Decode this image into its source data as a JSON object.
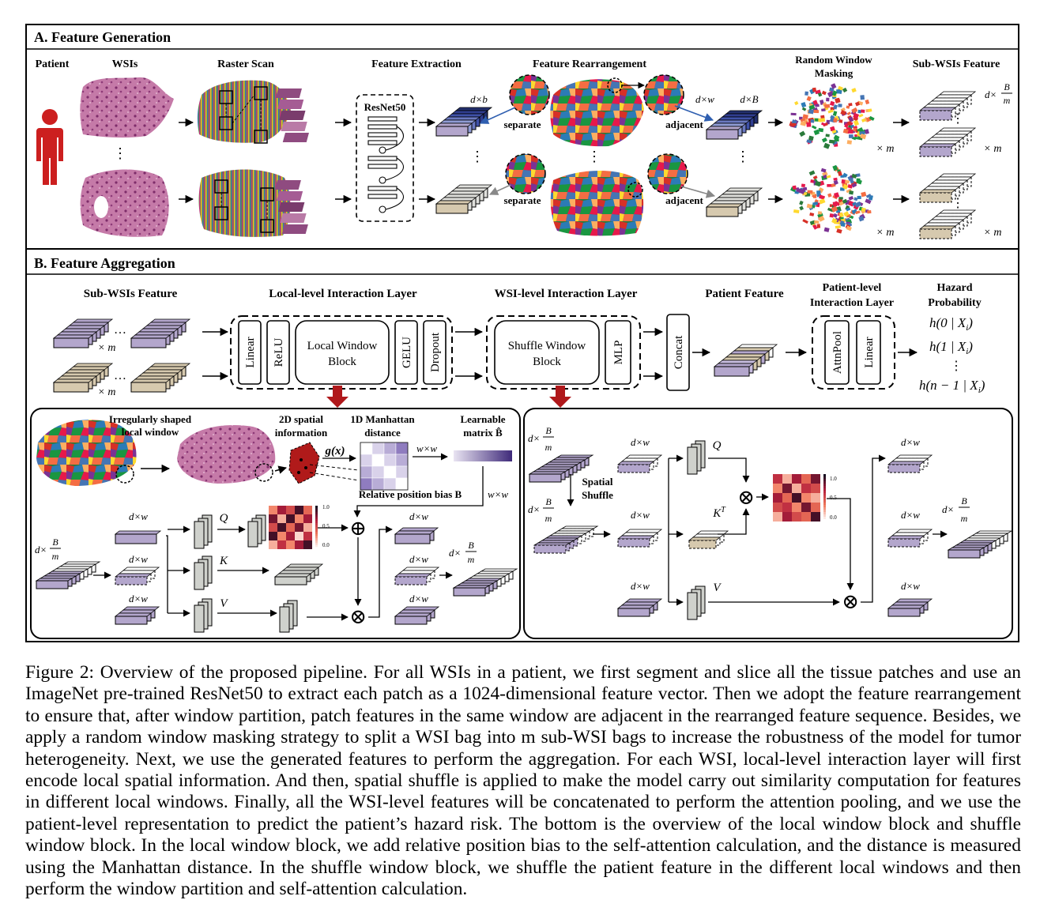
{
  "section_a": {
    "title": "A. Feature Generation",
    "col_patient": "Patient",
    "col_wsis": "WSIs",
    "col_raster": "Raster Scan",
    "col_extraction": "Feature Extraction",
    "col_rearrange": "Feature Rearrangement",
    "col_masking_1": "Random Window",
    "col_masking_2": "Masking",
    "col_subwsi": "Sub-WSIs Feature",
    "resnet": "ResNet50",
    "dim_db": "d×b",
    "dim_dw": "d×w",
    "dim_dB": "d×B",
    "dim_dBm_prefix": "d×",
    "frac_num": "B",
    "frac_den": "m",
    "separate": "separate",
    "adjacent": "adjacent",
    "times_m": "× m",
    "dots": "⋮"
  },
  "section_b": {
    "title": "B. Feature Aggregation",
    "col_subwsi": "Sub-WSIs Feature",
    "col_local": "Local-level Interaction Layer",
    "col_wsi": "WSI-level Interaction Layer",
    "col_patient": "Patient Feature",
    "col_patient_level_1": "Patient-level",
    "col_patient_level_2": "Interaction Layer",
    "col_hazard_1": "Hazard",
    "col_hazard_2": "Probability",
    "linear": "Linear",
    "relu": "ReLU",
    "local_block_1": "Local Window",
    "local_block_2": "Block",
    "gelu": "GELU",
    "dropout": "Dropout",
    "shuffle_block_1": "Shuffle Window",
    "shuffle_block_2": "Block",
    "mlp": "MLP",
    "concat": "Concat",
    "attnpool": "AttnPool",
    "h0": "h(0 | X",
    "h1": "h(1 | X",
    "hn": "h(n − 1 | X",
    "sub_i": "i",
    "close": ")",
    "ellipsis": "…",
    "times_m": "× m",
    "vdots": "⋮"
  },
  "local_detail": {
    "irregular_1": "Irregularly shaped",
    "irregular_2": "local window",
    "spatial_1": "2D spatial",
    "spatial_2": "information",
    "manhattan_1": "1D Manhattan",
    "manhattan_2": "distance",
    "learnable_1": "Learnable",
    "learnable_2": "matrix B̂",
    "gx": "g(x)",
    "rel_bias": "Relative position bias B",
    "wxw": "w×w",
    "q": "Q",
    "k": "K",
    "v": "V",
    "dxw": "d×w",
    "plus": "⊕",
    "times": "⊗",
    "scale_top": "1.0",
    "scale_mid": "0.5",
    "scale_bot": "0.0"
  },
  "shuffle_detail": {
    "spatial_1": "Spatial",
    "spatial_2": "Shuffle",
    "q": "Q",
    "kt": "K",
    "kt_sup": "T",
    "v": "V",
    "dxw": "d×w",
    "scale_top": "1.0",
    "scale_mid": "0.5",
    "scale_bot": "0.0"
  },
  "colors": {
    "purple": "#b3a6cc",
    "tan": "#d6c9ae",
    "gray": "#cfd1cc",
    "blue": "#2f3d8f",
    "red_arrow": "#b0181b",
    "patient_red": "#cc1f1f",
    "tissue": "#b45d95"
  },
  "caption": "Figure 2: Overview of the proposed pipeline. For all WSIs in a patient, we first segment and slice all the tissue patches and use an ImageNet pre-trained ResNet50 to extract each patch as a 1024-dimensional feature vector. Then we adopt the feature rearrangement to ensure that, after window partition, patch features in the same window are adjacent in the rearranged feature sequence. Besides, we apply a random window masking strategy to split a WSI bag into m sub-WSI bags to increase the robustness of the model for tumor heterogeneity. Next, we use the generated features to perform the aggregation. For each WSI, local-level interaction layer will first encode local spatial information. And then, spatial shuffle is applied to make the model carry out similarity computation for features in different local windows. Finally, all the WSI-level features will be concatenated to perform the attention pooling, and we use the patient-level representation to predict the patient’s hazard risk. The bottom is the overview of the local window block and shuffle window block. In the local window block, we add relative position bias to the self-attention calculation, and the distance is measured using the Manhattan distance. In the shuffle window block, we shuffle the patient feature in the different local windows and then perform the window partition and self-attention calculation."
}
